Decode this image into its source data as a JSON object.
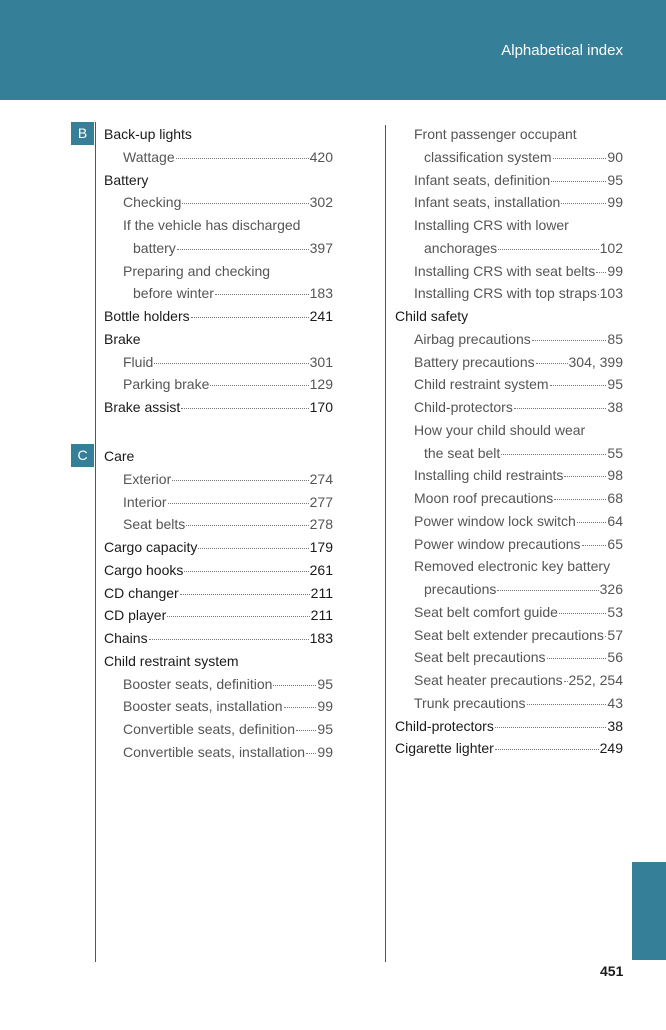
{
  "header": {
    "title": "Alphabetical index"
  },
  "sections": [
    {
      "letter": "B",
      "entries": [
        {
          "t": "main",
          "label": "Back-up lights"
        },
        {
          "t": "sub",
          "label": "Wattage",
          "page": "420"
        },
        {
          "t": "main",
          "label": "Battery"
        },
        {
          "t": "sub",
          "label": "Checking",
          "page": "302"
        },
        {
          "t": "sub",
          "label": "If the vehicle has discharged"
        },
        {
          "t": "cont",
          "label": "battery",
          "page": "397"
        },
        {
          "t": "sub",
          "label": "Preparing and checking"
        },
        {
          "t": "cont",
          "label": "before winter",
          "page": "183"
        },
        {
          "t": "main",
          "label": "Bottle holders",
          "page": "241"
        },
        {
          "t": "main",
          "label": "Brake"
        },
        {
          "t": "sub",
          "label": "Fluid",
          "page": "301"
        },
        {
          "t": "sub",
          "label": "Parking brake",
          "page": "129"
        },
        {
          "t": "main",
          "label": "Brake assist",
          "page": "170"
        }
      ]
    },
    {
      "letter": "C",
      "entries": [
        {
          "t": "main",
          "label": "Care"
        },
        {
          "t": "sub",
          "label": "Exterior",
          "page": "274"
        },
        {
          "t": "sub",
          "label": "Interior",
          "page": "277"
        },
        {
          "t": "sub",
          "label": "Seat belts",
          "page": "278"
        },
        {
          "t": "main",
          "label": "Cargo capacity",
          "page": "179"
        },
        {
          "t": "main",
          "label": "Cargo hooks",
          "page": "261"
        },
        {
          "t": "main",
          "label": "CD changer",
          "page": "211"
        },
        {
          "t": "main",
          "label": "CD player",
          "page": "211"
        },
        {
          "t": "main",
          "label": "Chains",
          "page": "183"
        },
        {
          "t": "main",
          "label": "Child restraint system"
        },
        {
          "t": "sub",
          "label": "Booster seats, definition",
          "page": "95"
        },
        {
          "t": "sub",
          "label": "Booster seats, installation",
          "page": "99"
        },
        {
          "t": "sub",
          "label": "Convertible seats, definition",
          "page": "95"
        },
        {
          "t": "sub",
          "label": "Convertible seats, installation",
          "page": "99"
        }
      ]
    }
  ],
  "right_column": [
    {
      "t": "sub",
      "label": "Front passenger occupant"
    },
    {
      "t": "cont",
      "label": "classification system",
      "page": "90"
    },
    {
      "t": "sub",
      "label": "Infant seats, definition",
      "page": "95"
    },
    {
      "t": "sub",
      "label": "Infant seats, installation",
      "page": "99"
    },
    {
      "t": "sub",
      "label": "Installing CRS with lower"
    },
    {
      "t": "cont",
      "label": "anchorages",
      "page": "102"
    },
    {
      "t": "sub",
      "label": "Installing CRS with seat belts",
      "page": "99"
    },
    {
      "t": "sub",
      "label": "Installing CRS with top straps",
      "page": "103"
    },
    {
      "t": "main",
      "label": "Child safety"
    },
    {
      "t": "sub",
      "label": "Airbag precautions",
      "page": "85"
    },
    {
      "t": "sub",
      "label": "Battery precautions",
      "page": "304, 399"
    },
    {
      "t": "sub",
      "label": "Child restraint system",
      "page": "95"
    },
    {
      "t": "sub",
      "label": "Child-protectors",
      "page": "38"
    },
    {
      "t": "sub",
      "label": "How your child should wear"
    },
    {
      "t": "cont",
      "label": "the seat belt",
      "page": "55"
    },
    {
      "t": "sub",
      "label": "Installing child restraints",
      "page": "98"
    },
    {
      "t": "sub",
      "label": "Moon roof precautions",
      "page": "68"
    },
    {
      "t": "sub",
      "label": "Power window lock switch",
      "page": "64"
    },
    {
      "t": "sub",
      "label": "Power window precautions",
      "page": "65"
    },
    {
      "t": "sub",
      "label": "Removed electronic key battery"
    },
    {
      "t": "cont",
      "label": "precautions",
      "page": "326"
    },
    {
      "t": "sub",
      "label": "Seat belt comfort guide",
      "page": "53"
    },
    {
      "t": "sub",
      "label": "Seat belt extender precautions",
      "page": "57"
    },
    {
      "t": "sub",
      "label": "Seat belt precautions",
      "page": "56"
    },
    {
      "t": "sub",
      "label": "Seat heater precautions",
      "page": "252, 254"
    },
    {
      "t": "sub",
      "label": "Trunk precautions",
      "page": "43"
    },
    {
      "t": "main",
      "label": "Child-protectors",
      "page": "38"
    },
    {
      "t": "main",
      "label": "Cigarette lighter",
      "page": "249"
    }
  ],
  "page_number": "451",
  "colors": {
    "accent": "#357f98"
  }
}
